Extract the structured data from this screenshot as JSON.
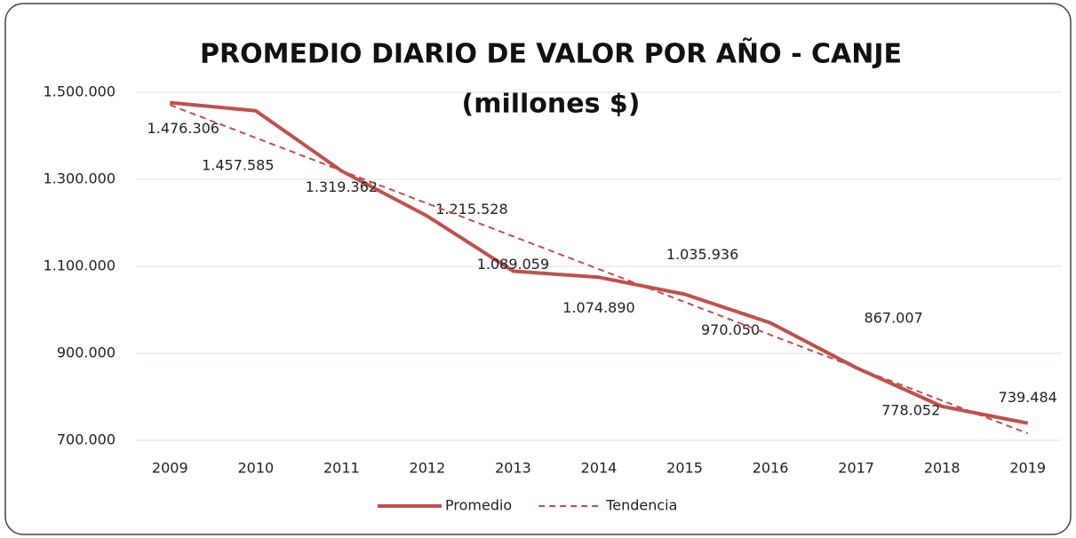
{
  "chart_data": {
    "type": "line",
    "title": "PROMEDIO DIARIO DE VALOR POR AÑO - CANJE",
    "subtitle": "(millones $)",
    "categories": [
      "2009",
      "2010",
      "2011",
      "2012",
      "2013",
      "2014",
      "2015",
      "2016",
      "2017",
      "2018",
      "2019"
    ],
    "series": [
      {
        "name": "Promedio",
        "color": "#c0504d",
        "dashed": false,
        "values": [
          1476306,
          1457585,
          1319362,
          1215528,
          1089059,
          1074890,
          1035936,
          970050,
          867007,
          778052,
          739484
        ],
        "value_labels": [
          "1.476.306",
          "1.457.585",
          "1.319.362",
          "1.215.528",
          "1.089.059",
          "1.074.890",
          "1.035.936",
          "970.050",
          "867.007",
          "778.052",
          "739.484"
        ]
      },
      {
        "name": "Tendencia",
        "color": "#c0504d",
        "dashed": true,
        "values": [
          1471000,
          1395500,
          1320000,
          1244500,
          1169000,
          1093500,
          1018000,
          942500,
          867000,
          791500,
          716000
        ]
      }
    ],
    "ylim": [
      700000,
      1500000
    ],
    "yticks": [
      {
        "value": 700000,
        "label": "700.000"
      },
      {
        "value": 900000,
        "label": "900.000"
      },
      {
        "value": 1100000,
        "label": "1.100.000"
      },
      {
        "value": 1300000,
        "label": "1.300.000"
      },
      {
        "value": 1500000,
        "label": "1.500.000"
      }
    ],
    "grid": true,
    "legend": "bottom"
  }
}
